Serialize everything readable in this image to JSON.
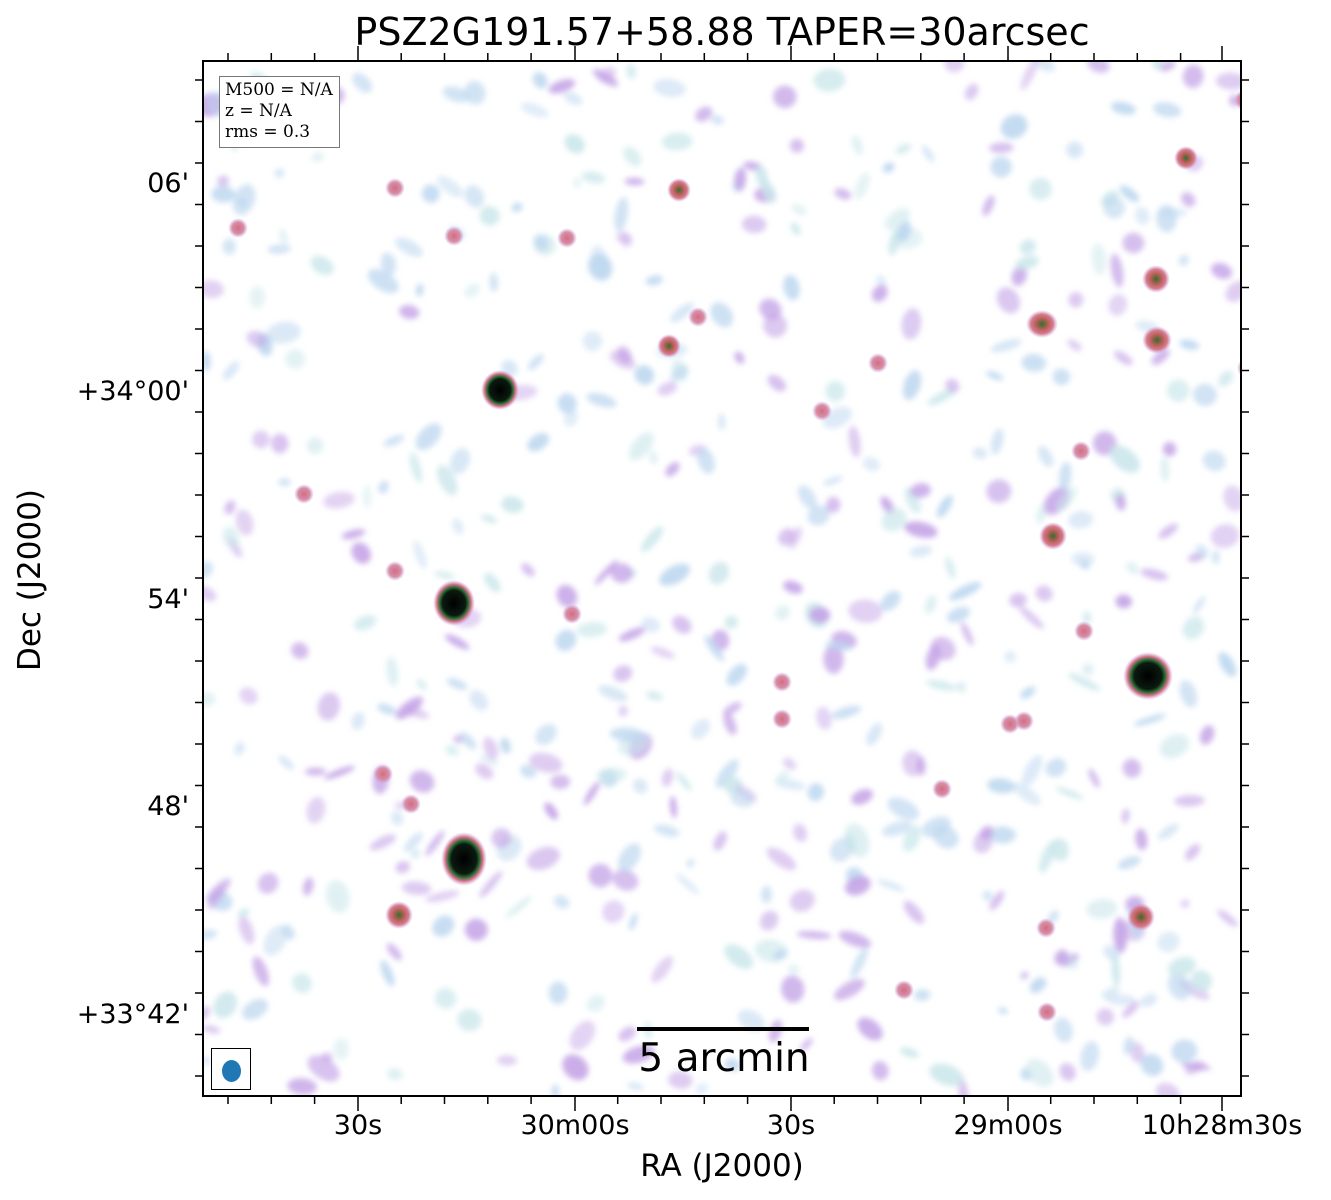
{
  "title": "PSZ2G191.57+58.88 TAPER=30arcsec",
  "info_box": {
    "m500": "M500 = N/A",
    "z": "z = N/A",
    "rms": "rms = 0.3"
  },
  "scale_bar_label": "5 arcmin",
  "axes": {
    "ylabel": "Dec (J2000)",
    "xlabel": "RA (J2000)",
    "y_ticks": [
      "06'",
      "+34°00'",
      "54'",
      "48'",
      "+33°42'"
    ],
    "x_ticks": [
      "30s",
      "30m00s",
      "30s",
      "29m00s",
      "10h28m30s"
    ]
  },
  "colors": {
    "faint": "#bcd6ef",
    "mid": "#c3a2e6",
    "pink": "#d97a8e",
    "bright": "#3a7a36",
    "core": "#000000",
    "beam": "#1f77b4"
  }
}
